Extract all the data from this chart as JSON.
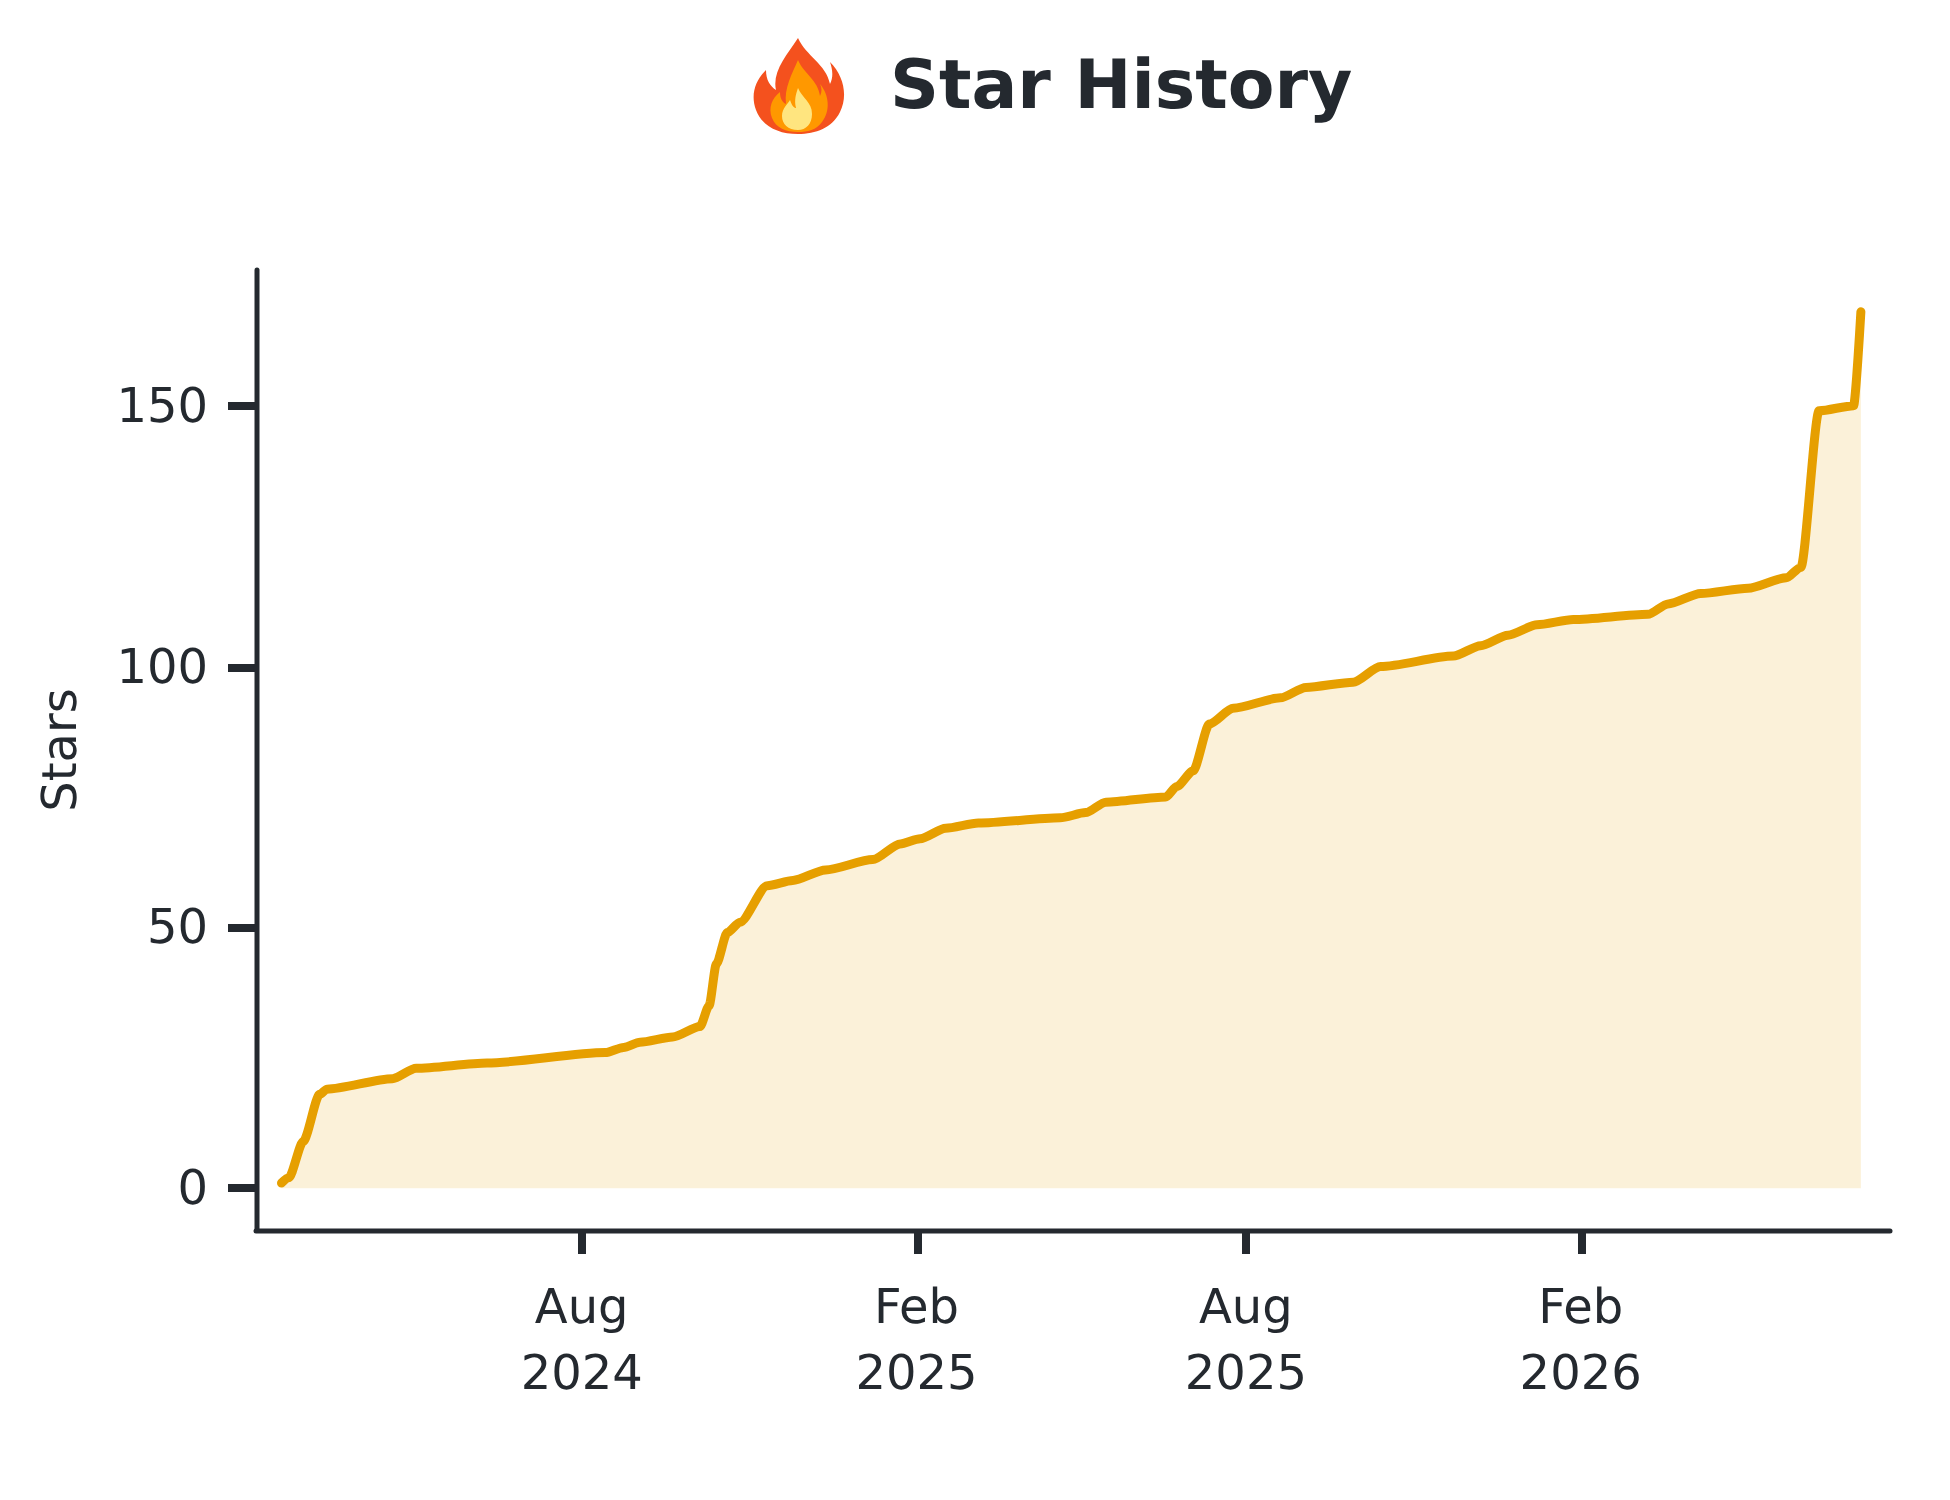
{
  "chart_data": {
    "type": "area",
    "title": "Star History",
    "ylabel": "Stars",
    "x": [
      "2024-02-18",
      "2024-02-22",
      "2024-03-01",
      "2024-03-10",
      "2024-03-14",
      "2024-04-19",
      "2024-05-02",
      "2024-06-10",
      "2024-08-14",
      "2024-08-24",
      "2024-09-02",
      "2024-09-20",
      "2024-10-05",
      "2024-10-10",
      "2024-10-14",
      "2024-10-20",
      "2024-10-27",
      "2024-11-11",
      "2024-11-25",
      "2024-12-13",
      "2025-01-08",
      "2025-01-23",
      "2025-02-03",
      "2025-02-17",
      "2025-03-07",
      "2025-04-21",
      "2025-05-05",
      "2025-05-16",
      "2025-06-18",
      "2025-06-24",
      "2025-07-03",
      "2025-07-12",
      "2025-07-25",
      "2025-08-20",
      "2025-09-03",
      "2025-09-29",
      "2025-10-14",
      "2025-11-23",
      "2025-12-08",
      "2025-12-23",
      "2026-01-08",
      "2026-01-28",
      "2026-03-10",
      "2026-03-21",
      "2026-04-08",
      "2026-05-04",
      "2026-05-25",
      "2026-06-02",
      "2026-06-12",
      "2026-07-01",
      "2026-07-05"
    ],
    "series": [
      {
        "color": "#e69f00",
        "values": [
          1,
          2,
          9,
          18,
          19,
          21,
          23,
          24,
          26,
          27,
          28,
          29,
          31,
          35,
          43,
          49,
          51,
          58,
          59,
          61,
          63,
          66,
          67,
          69,
          70,
          71,
          72,
          74,
          75,
          77,
          80,
          89,
          92,
          94,
          96,
          97,
          100,
          102,
          104,
          106,
          108,
          109,
          110,
          112,
          114,
          115,
          117,
          119,
          149,
          150,
          168
        ]
      }
    ],
    "xlim": [
      "2024-02-04",
      "2026-07-21"
    ],
    "xticks": [
      {
        "value": "2024-08-01",
        "label": "Aug\n2024"
      },
      {
        "value": "2025-02-01",
        "label": "Feb\n2025"
      },
      {
        "value": "2025-08-01",
        "label": "Aug\n2025"
      },
      {
        "value": "2026-02-01",
        "label": "Feb\n2026"
      }
    ],
    "ylim": [
      -8,
      176
    ],
    "yticks": [
      0,
      50,
      100,
      150
    ]
  }
}
